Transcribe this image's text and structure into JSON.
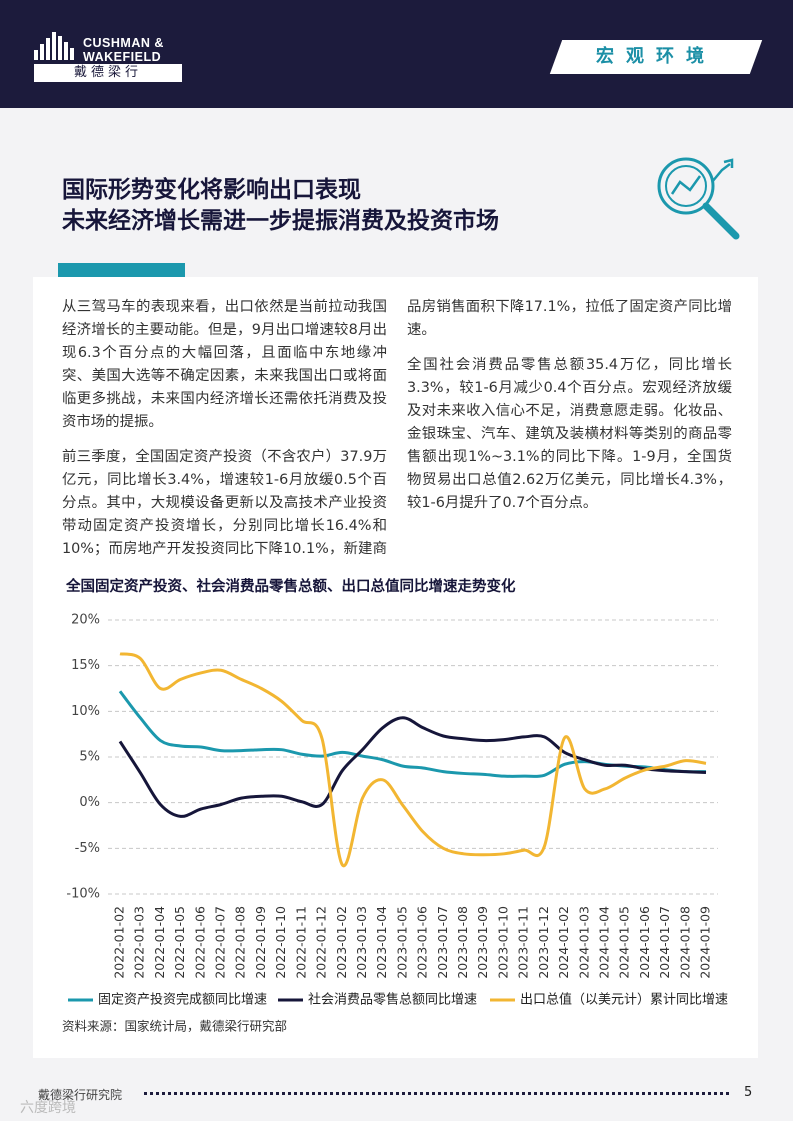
{
  "header": {
    "logo_line1": "CUSHMAN &",
    "logo_line2": "WAKEFIELD",
    "logo_cn": "戴德梁行",
    "section": "宏观环境"
  },
  "title": [
    "国际形势变化将影响出口表现",
    "未来经济增长需进一步提振消费及投资市场"
  ],
  "paragraphs": [
    "从三驾马车的表现来看，出口依然是当前拉动我国经济增长的主要动能。但是，9月出口增速较8月出现6.3个百分点的大幅回落，且面临中东地缘冲突、美国大选等不确定因素，未来我国出口或将面临更多挑战，未来国内经济增长还需依托消费及投资市场的提振。",
    "前三季度，全国固定资产投资（不含农户）37.9万亿元，同比增长3.4%，增速较1-6月放缓0.5个百分点。其中，大规模设备更新以及高技术产业投资带动固定资产投资增长，分别同比增长16.4%和10%；而房地产开发投资同比下降10.1%，新建商品房销售面积下降17.1%，拉低了固定资产同比增速。",
    "全国社会消费品零售总额35.4万亿，同比增长3.3%，较1-6月减少0.4个百分点。宏观经济放缓及对未来收入信心不足，消费意愿走弱。化妆品、金银珠宝、汽车、建筑及装横材料等类别的商品零售额出现1%~3.1%的同比下降。1-9月，全国货物贸易出口总值2.62万亿美元，同比增长4.3%，较1-6月提升了0.7个百分点。"
  ],
  "chart_data": {
    "type": "line",
    "title": "全国固定资产投资、社会消费品零售总额、出口总值同比增速走势变化",
    "categories": [
      "2022-01-02",
      "2022-01-03",
      "2022-01-04",
      "2022-01-05",
      "2022-01-06",
      "2022-01-07",
      "2022-01-08",
      "2022-01-09",
      "2022-01-10",
      "2022-01-11",
      "2022-01-12",
      "2023-01-02",
      "2023-01-03",
      "2023-01-04",
      "2023-01-05",
      "2023-01-06",
      "2023-01-07",
      "2023-01-08",
      "2023-01-09",
      "2023-01-10",
      "2023-01-11",
      "2023-01-12",
      "2024-01-02",
      "2024-01-03",
      "2024-01-04",
      "2024-01-05",
      "2024-01-06",
      "2024-01-07",
      "2024-01-08",
      "2024-01-09"
    ],
    "series": [
      {
        "name": "固定资产投资完成额同比增速",
        "color": "#1b98ad",
        "values": [
          12.2,
          9.3,
          6.8,
          6.2,
          6.1,
          5.7,
          5.7,
          5.8,
          5.8,
          5.3,
          5.1,
          5.5,
          5.1,
          4.7,
          4.0,
          3.8,
          3.4,
          3.2,
          3.1,
          2.9,
          2.9,
          3.0,
          4.2,
          4.5,
          4.2,
          4.0,
          3.9,
          3.6,
          3.4,
          3.4
        ]
      },
      {
        "name": "社会消费品零售总额同比增速",
        "color": "#16163a",
        "values": [
          6.7,
          3.3,
          -0.2,
          -1.5,
          -0.7,
          -0.2,
          0.5,
          0.7,
          0.7,
          0.1,
          -0.2,
          3.5,
          5.8,
          8.2,
          9.3,
          8.2,
          7.3,
          7.0,
          6.8,
          6.9,
          7.2,
          7.2,
          5.5,
          4.7,
          4.1,
          4.1,
          3.7,
          3.5,
          3.4,
          3.3
        ]
      },
      {
        "name": "出口总值（以美元计）累计同比增速",
        "color": "#f2b632",
        "values": [
          16.3,
          15.8,
          12.5,
          13.5,
          14.2,
          14.5,
          13.5,
          12.5,
          11.1,
          9.0,
          7.0,
          -6.8,
          0.5,
          2.5,
          -0.3,
          -3.2,
          -5.0,
          -5.6,
          -5.7,
          -5.6,
          -5.2,
          -4.8,
          7.1,
          1.5,
          1.5,
          2.7,
          3.6,
          4.0,
          4.6,
          4.3
        ]
      }
    ],
    "ylim": [
      -10,
      20
    ],
    "yticks": [
      {
        "value": -10,
        "label": "-10%"
      },
      {
        "value": -5,
        "label": "-5%"
      },
      {
        "value": 0,
        "label": "0%"
      },
      {
        "value": 5,
        "label": "5%"
      },
      {
        "value": 10,
        "label": "10%"
      },
      {
        "value": 15,
        "label": "15%"
      },
      {
        "value": 20,
        "label": "20%"
      }
    ],
    "grid": true,
    "source": "资料来源：国家统计局，戴德梁行研究部"
  },
  "footer": {
    "org": "戴德梁行研究院",
    "page": 5,
    "watermark": "六度跨境"
  }
}
